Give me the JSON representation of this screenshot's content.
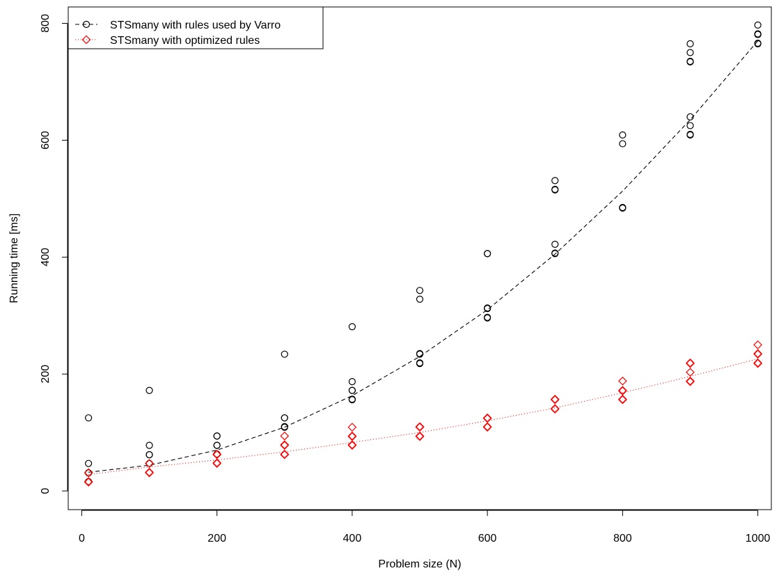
{
  "chart_data": {
    "type": "scatter",
    "xlabel": "Problem size (N)",
    "ylabel": "Running time [ms]",
    "xlim": [
      -20,
      1020
    ],
    "ylim": [
      -32,
      828
    ],
    "xticks": [
      0,
      200,
      400,
      600,
      800,
      1000
    ],
    "yticks": [
      0,
      200,
      400,
      600,
      800
    ],
    "grid": false,
    "legend_position": "top-left",
    "series": [
      {
        "name": "STSmany with rules used by Varro",
        "color": "#000000",
        "marker": "circle",
        "line_style": "dashed",
        "points": [
          [
            10,
            125
          ],
          [
            10,
            47
          ],
          [
            10,
            31
          ],
          [
            10,
            31
          ],
          [
            10,
            16
          ],
          [
            100,
            172
          ],
          [
            100,
            78
          ],
          [
            100,
            62
          ],
          [
            100,
            62
          ],
          [
            100,
            47
          ],
          [
            200,
            94
          ],
          [
            200,
            94
          ],
          [
            200,
            78
          ],
          [
            200,
            78
          ],
          [
            200,
            63
          ],
          [
            300,
            234
          ],
          [
            300,
            125
          ],
          [
            300,
            125
          ],
          [
            300,
            110
          ],
          [
            300,
            109
          ],
          [
            400,
            281
          ],
          [
            400,
            187
          ],
          [
            400,
            172
          ],
          [
            400,
            172
          ],
          [
            400,
            156
          ],
          [
            400,
            157
          ],
          [
            500,
            343
          ],
          [
            500,
            328
          ],
          [
            500,
            234
          ],
          [
            500,
            235
          ],
          [
            500,
            219
          ],
          [
            500,
            218
          ],
          [
            600,
            406
          ],
          [
            600,
            406
          ],
          [
            600,
            313
          ],
          [
            600,
            312
          ],
          [
            600,
            297
          ],
          [
            600,
            296
          ],
          [
            700,
            531
          ],
          [
            700,
            516
          ],
          [
            700,
            515
          ],
          [
            700,
            422
          ],
          [
            700,
            406
          ],
          [
            700,
            407
          ],
          [
            800,
            609
          ],
          [
            800,
            594
          ],
          [
            800,
            484
          ],
          [
            800,
            485
          ],
          [
            800,
            484
          ],
          [
            900,
            765
          ],
          [
            900,
            750
          ],
          [
            900,
            734
          ],
          [
            900,
            735
          ],
          [
            900,
            640
          ],
          [
            900,
            625
          ],
          [
            900,
            609
          ],
          [
            900,
            610
          ],
          [
            1000,
            797
          ],
          [
            1000,
            781
          ],
          [
            1000,
            782
          ],
          [
            1000,
            781
          ],
          [
            1000,
            766
          ],
          [
            1000,
            765
          ]
        ],
        "fit": [
          [
            10,
            32
          ],
          [
            100,
            44
          ],
          [
            200,
            70
          ],
          [
            300,
            109
          ],
          [
            400,
            163
          ],
          [
            500,
            230
          ],
          [
            600,
            310
          ],
          [
            700,
            405
          ],
          [
            800,
            513
          ],
          [
            900,
            635
          ],
          [
            1000,
            770
          ]
        ]
      },
      {
        "name": "STSmany with optimized rules",
        "color": "#ff0000",
        "marker": "diamond",
        "line_style": "dotted",
        "points": [
          [
            10,
            31
          ],
          [
            10,
            31
          ],
          [
            10,
            16
          ],
          [
            10,
            15
          ],
          [
            100,
            47
          ],
          [
            100,
            47
          ],
          [
            100,
            31
          ],
          [
            100,
            32
          ],
          [
            200,
            63
          ],
          [
            200,
            62
          ],
          [
            200,
            47
          ],
          [
            200,
            48
          ],
          [
            300,
            94
          ],
          [
            300,
            78
          ],
          [
            300,
            79
          ],
          [
            300,
            63
          ],
          [
            300,
            62
          ],
          [
            400,
            109
          ],
          [
            400,
            94
          ],
          [
            400,
            93
          ],
          [
            400,
            78
          ],
          [
            400,
            79
          ],
          [
            500,
            109
          ],
          [
            500,
            110
          ],
          [
            500,
            94
          ],
          [
            500,
            93
          ],
          [
            600,
            125
          ],
          [
            600,
            124
          ],
          [
            600,
            109
          ],
          [
            600,
            110
          ],
          [
            700,
            156
          ],
          [
            700,
            157
          ],
          [
            700,
            141
          ],
          [
            700,
            140
          ],
          [
            800,
            188
          ],
          [
            800,
            172
          ],
          [
            800,
            171
          ],
          [
            800,
            156
          ],
          [
            800,
            157
          ],
          [
            900,
            219
          ],
          [
            900,
            218
          ],
          [
            900,
            203
          ],
          [
            900,
            188
          ],
          [
            900,
            187
          ],
          [
            1000,
            250
          ],
          [
            1000,
            235
          ],
          [
            1000,
            234
          ],
          [
            1000,
            219
          ],
          [
            1000,
            218
          ]
        ],
        "fit": [
          [
            10,
            28
          ],
          [
            100,
            41
          ],
          [
            200,
            53
          ],
          [
            300,
            67
          ],
          [
            400,
            83
          ],
          [
            500,
            100
          ],
          [
            600,
            120
          ],
          [
            700,
            142
          ],
          [
            800,
            168
          ],
          [
            900,
            196
          ],
          [
            1000,
            226
          ]
        ]
      }
    ]
  }
}
